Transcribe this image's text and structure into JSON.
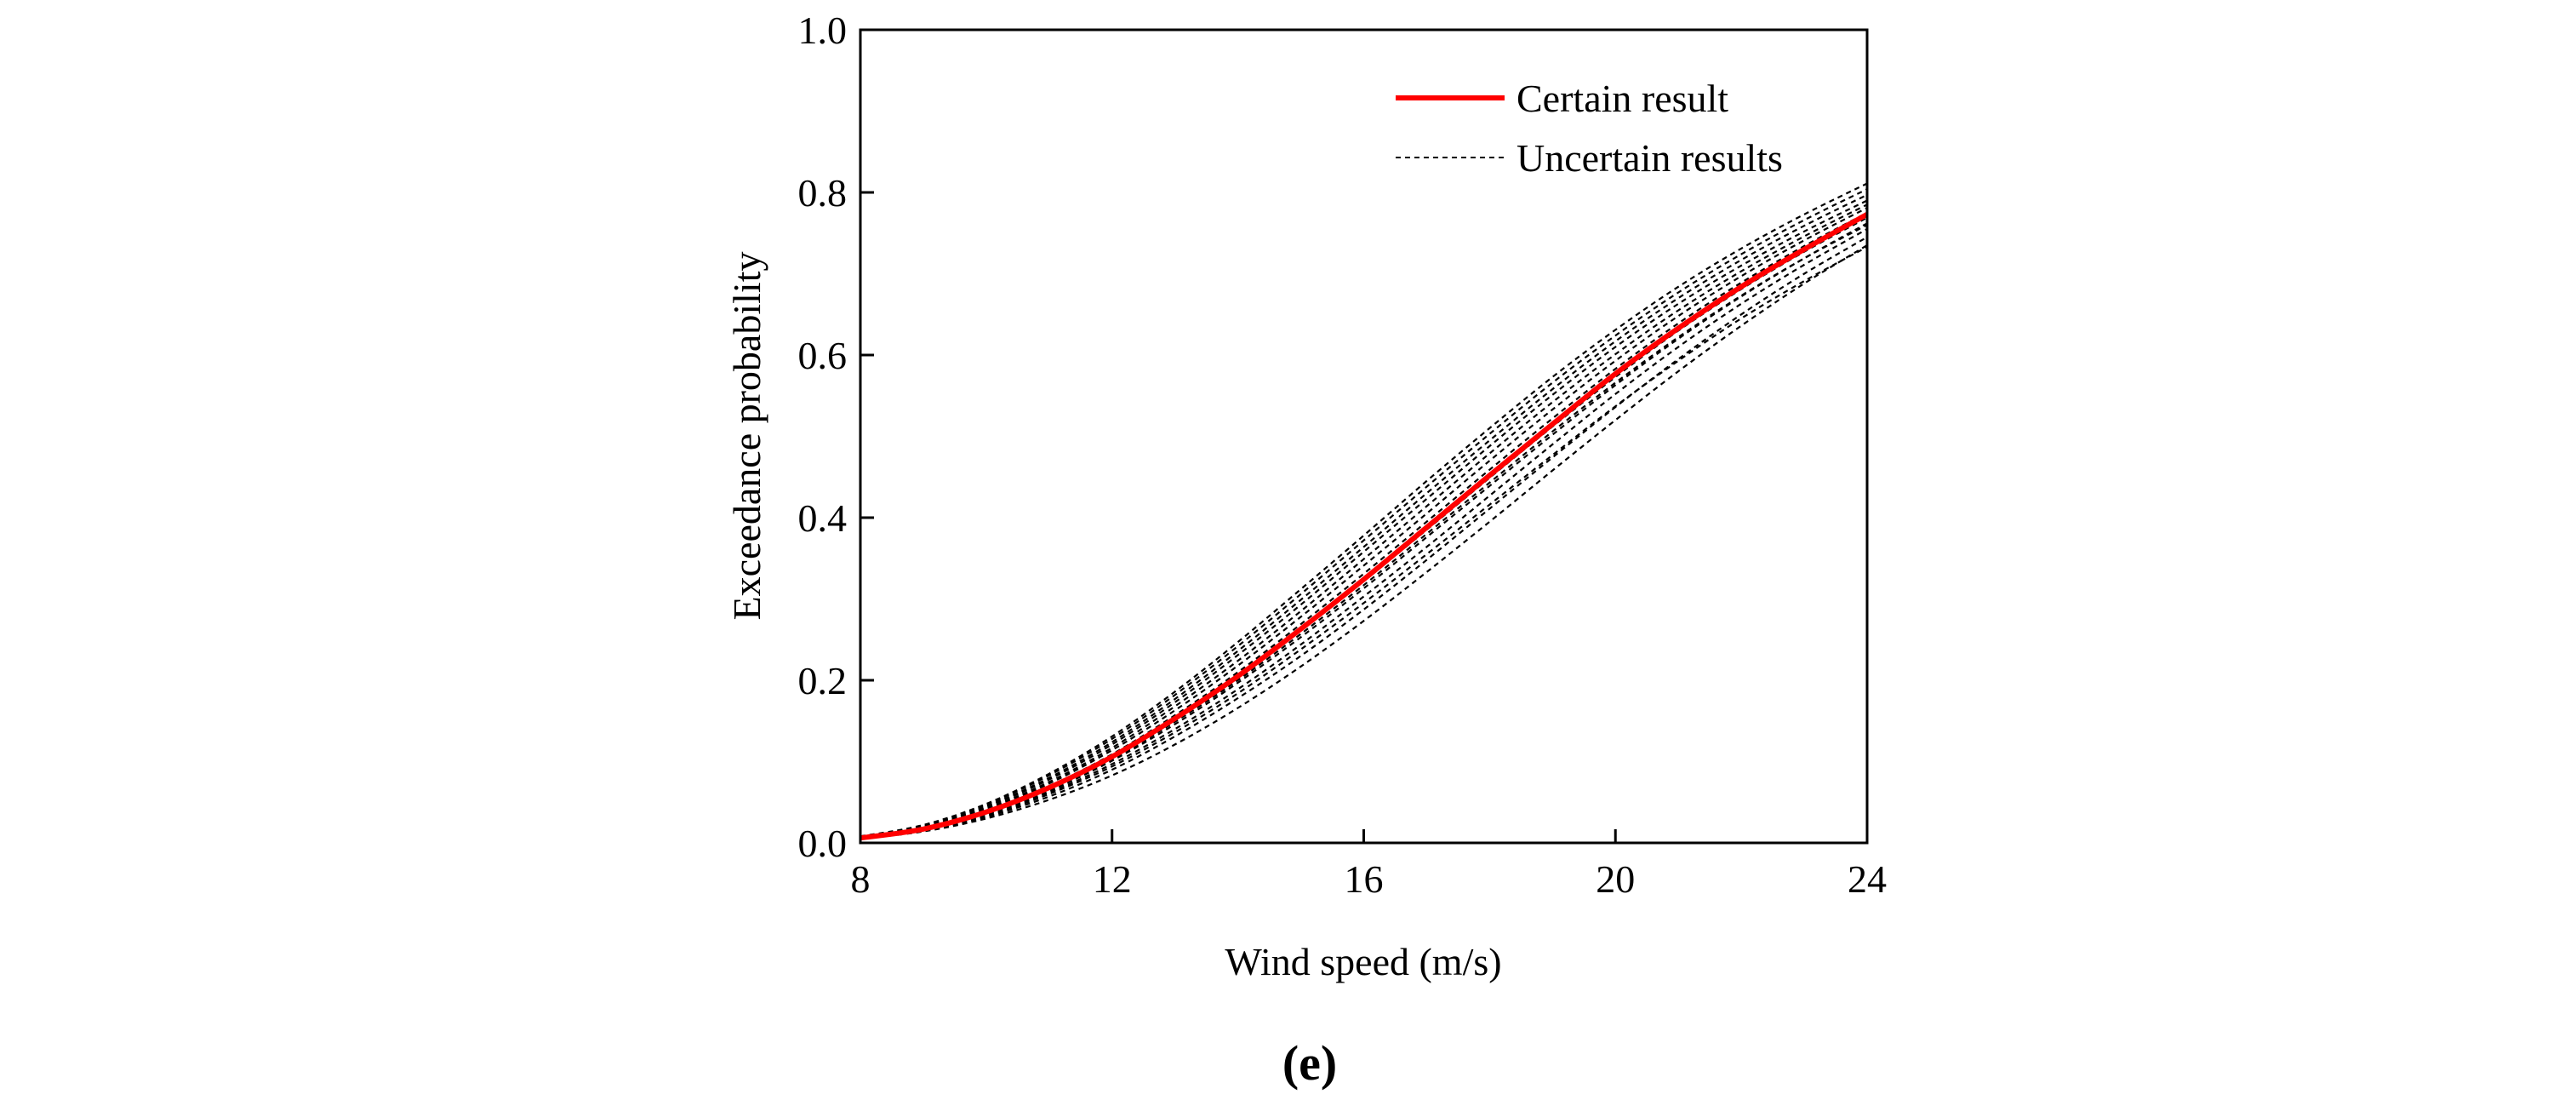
{
  "panel_label": "(e)",
  "chart_data": {
    "type": "line",
    "title": "",
    "xlabel": "Wind speed (m/s)",
    "ylabel": "Exceedance probability",
    "xlim": [
      8,
      24
    ],
    "ylim": [
      0,
      1
    ],
    "xticks": [
      8,
      12,
      16,
      20,
      24
    ],
    "xtick_labels": [
      "8",
      "12",
      "16",
      "20",
      "24"
    ],
    "yticks": [
      0,
      0.2,
      0.4,
      0.6,
      0.8,
      1.0
    ],
    "ytick_labels": [
      "0.0",
      "0.2",
      "0.4",
      "0.6",
      "0.8",
      "1.0"
    ],
    "grid": false,
    "legend_position": "top-right",
    "legend": [
      "Certain result",
      "Uncertain results"
    ],
    "colors": {
      "certain": "#ff0000",
      "uncertain": "#000000",
      "axis": "#000000"
    },
    "x": [
      8,
      9,
      10,
      11,
      12,
      13,
      14,
      15,
      16,
      17,
      18,
      19,
      20,
      21,
      22,
      23,
      24
    ],
    "series": [
      {
        "name": "Certain result",
        "style": "solid",
        "values": [
          0.006,
          0.017,
          0.038,
          0.068,
          0.106,
          0.153,
          0.205,
          0.263,
          0.324,
          0.388,
          0.452,
          0.515,
          0.577,
          0.633,
          0.684,
          0.73,
          0.773
        ]
      },
      {
        "name": "Uncertain results",
        "style": "dashed",
        "samples": [
          {
            "values": [
              0.005,
              0.014,
              0.03,
              0.053,
              0.083,
              0.121,
              0.166,
              0.217,
              0.273,
              0.333,
              0.395,
              0.458,
              0.52,
              0.58,
              0.636,
              0.688,
              0.735
            ]
          },
          {
            "values": [
              0.005,
              0.015,
              0.032,
              0.057,
              0.09,
              0.131,
              0.178,
              0.23,
              0.287,
              0.348,
              0.411,
              0.474,
              0.536,
              0.595,
              0.65,
              0.7,
              0.745
            ]
          },
          {
            "values": [
              0.006,
              0.016,
              0.035,
              0.062,
              0.097,
              0.14,
              0.189,
              0.244,
              0.303,
              0.364,
              0.427,
              0.49,
              0.552,
              0.61,
              0.663,
              0.711,
              0.755
            ]
          },
          {
            "values": [
              0.006,
              0.016,
              0.036,
              0.064,
              0.101,
              0.146,
              0.197,
              0.253,
              0.313,
              0.376,
              0.439,
              0.502,
              0.563,
              0.62,
              0.672,
              0.719,
              0.762
            ]
          },
          {
            "values": [
              0.006,
              0.017,
              0.038,
              0.067,
              0.105,
              0.151,
              0.203,
              0.261,
              0.322,
              0.385,
              0.449,
              0.512,
              0.573,
              0.63,
              0.681,
              0.727,
              0.769
            ]
          },
          {
            "values": [
              0.006,
              0.018,
              0.039,
              0.07,
              0.109,
              0.157,
              0.21,
              0.269,
              0.331,
              0.395,
              0.459,
              0.522,
              0.583,
              0.639,
              0.689,
              0.734,
              0.775
            ]
          },
          {
            "values": [
              0.007,
              0.019,
              0.041,
              0.073,
              0.114,
              0.163,
              0.218,
              0.278,
              0.341,
              0.405,
              0.47,
              0.533,
              0.593,
              0.648,
              0.697,
              0.741,
              0.781
            ]
          },
          {
            "values": [
              0.007,
              0.019,
              0.042,
              0.075,
              0.117,
              0.168,
              0.224,
              0.285,
              0.349,
              0.414,
              0.479,
              0.542,
              0.601,
              0.655,
              0.703,
              0.746,
              0.785
            ]
          },
          {
            "values": [
              0.007,
              0.02,
              0.044,
              0.078,
              0.121,
              0.173,
              0.231,
              0.293,
              0.358,
              0.423,
              0.488,
              0.551,
              0.61,
              0.663,
              0.71,
              0.752,
              0.79
            ]
          },
          {
            "values": [
              0.007,
              0.02,
              0.045,
              0.08,
              0.124,
              0.177,
              0.236,
              0.299,
              0.364,
              0.43,
              0.495,
              0.558,
              0.617,
              0.67,
              0.717,
              0.759,
              0.797
            ]
          },
          {
            "values": [
              0.008,
              0.021,
              0.047,
              0.083,
              0.128,
              0.182,
              0.242,
              0.306,
              0.372,
              0.438,
              0.503,
              0.566,
              0.624,
              0.677,
              0.724,
              0.766,
              0.804
            ]
          },
          {
            "values": [
              0.008,
              0.022,
              0.048,
              0.085,
              0.131,
              0.186,
              0.247,
              0.312,
              0.378,
              0.445,
              0.51,
              0.573,
              0.631,
              0.684,
              0.731,
              0.773,
              0.811
            ]
          },
          {
            "values": [
              0.005,
              0.015,
              0.033,
              0.06,
              0.094,
              0.136,
              0.184,
              0.238,
              0.295,
              0.355,
              0.416,
              0.477,
              0.537,
              0.593,
              0.645,
              0.691,
              0.733
            ]
          },
          {
            "values": [
              0.006,
              0.017,
              0.037,
              0.066,
              0.103,
              0.149,
              0.2,
              0.257,
              0.317,
              0.38,
              0.443,
              0.506,
              0.566,
              0.622,
              0.673,
              0.719,
              0.76
            ]
          }
        ]
      }
    ]
  }
}
